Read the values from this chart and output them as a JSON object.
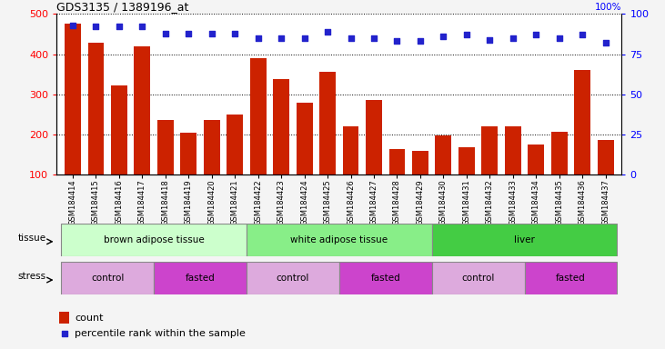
{
  "title": "GDS3135 / 1389196_at",
  "samples": [
    "GSM184414",
    "GSM184415",
    "GSM184416",
    "GSM184417",
    "GSM184418",
    "GSM184419",
    "GSM184420",
    "GSM184421",
    "GSM184422",
    "GSM184423",
    "GSM184424",
    "GSM184425",
    "GSM184426",
    "GSM184427",
    "GSM184428",
    "GSM184429",
    "GSM184430",
    "GSM184431",
    "GSM184432",
    "GSM184433",
    "GSM184434",
    "GSM184435",
    "GSM184436",
    "GSM184437"
  ],
  "counts": [
    475,
    428,
    323,
    420,
    235,
    205,
    235,
    250,
    390,
    338,
    278,
    355,
    220,
    285,
    163,
    160,
    197,
    168,
    220,
    220,
    175,
    207,
    360,
    186
  ],
  "percentile": [
    93,
    92,
    92,
    92,
    88,
    88,
    88,
    88,
    85,
    85,
    85,
    89,
    85,
    85,
    83,
    83,
    86,
    87,
    84,
    85,
    87,
    85,
    87,
    82
  ],
  "bar_color": "#cc2200",
  "dot_color": "#2222cc",
  "ylim_left": [
    100,
    500
  ],
  "ylim_right": [
    0,
    100
  ],
  "yticks_left": [
    100,
    200,
    300,
    400,
    500
  ],
  "yticks_right": [
    0,
    25,
    50,
    75,
    100
  ],
  "tissue_groups": [
    {
      "label": "brown adipose tissue",
      "start": 0,
      "end": 8,
      "color": "#ccffcc"
    },
    {
      "label": "white adipose tissue",
      "start": 8,
      "end": 16,
      "color": "#88ee88"
    },
    {
      "label": "liver",
      "start": 16,
      "end": 24,
      "color": "#44cc44"
    }
  ],
  "stress_groups": [
    {
      "label": "control",
      "start": 0,
      "end": 4,
      "color": "#ddaadd"
    },
    {
      "label": "fasted",
      "start": 4,
      "end": 8,
      "color": "#cc44cc"
    },
    {
      "label": "control",
      "start": 8,
      "end": 12,
      "color": "#ddaadd"
    },
    {
      "label": "fasted",
      "start": 12,
      "end": 16,
      "color": "#cc44cc"
    },
    {
      "label": "control",
      "start": 16,
      "end": 20,
      "color": "#ddaadd"
    },
    {
      "label": "fasted",
      "start": 20,
      "end": 24,
      "color": "#cc44cc"
    }
  ],
  "legend_count_color": "#cc2200",
  "legend_dot_color": "#2222cc",
  "fig_bg": "#f4f4f4",
  "plot_bg": "#ffffff",
  "grid_color": "#000000",
  "axis_label_bg": "#e0e0e0"
}
